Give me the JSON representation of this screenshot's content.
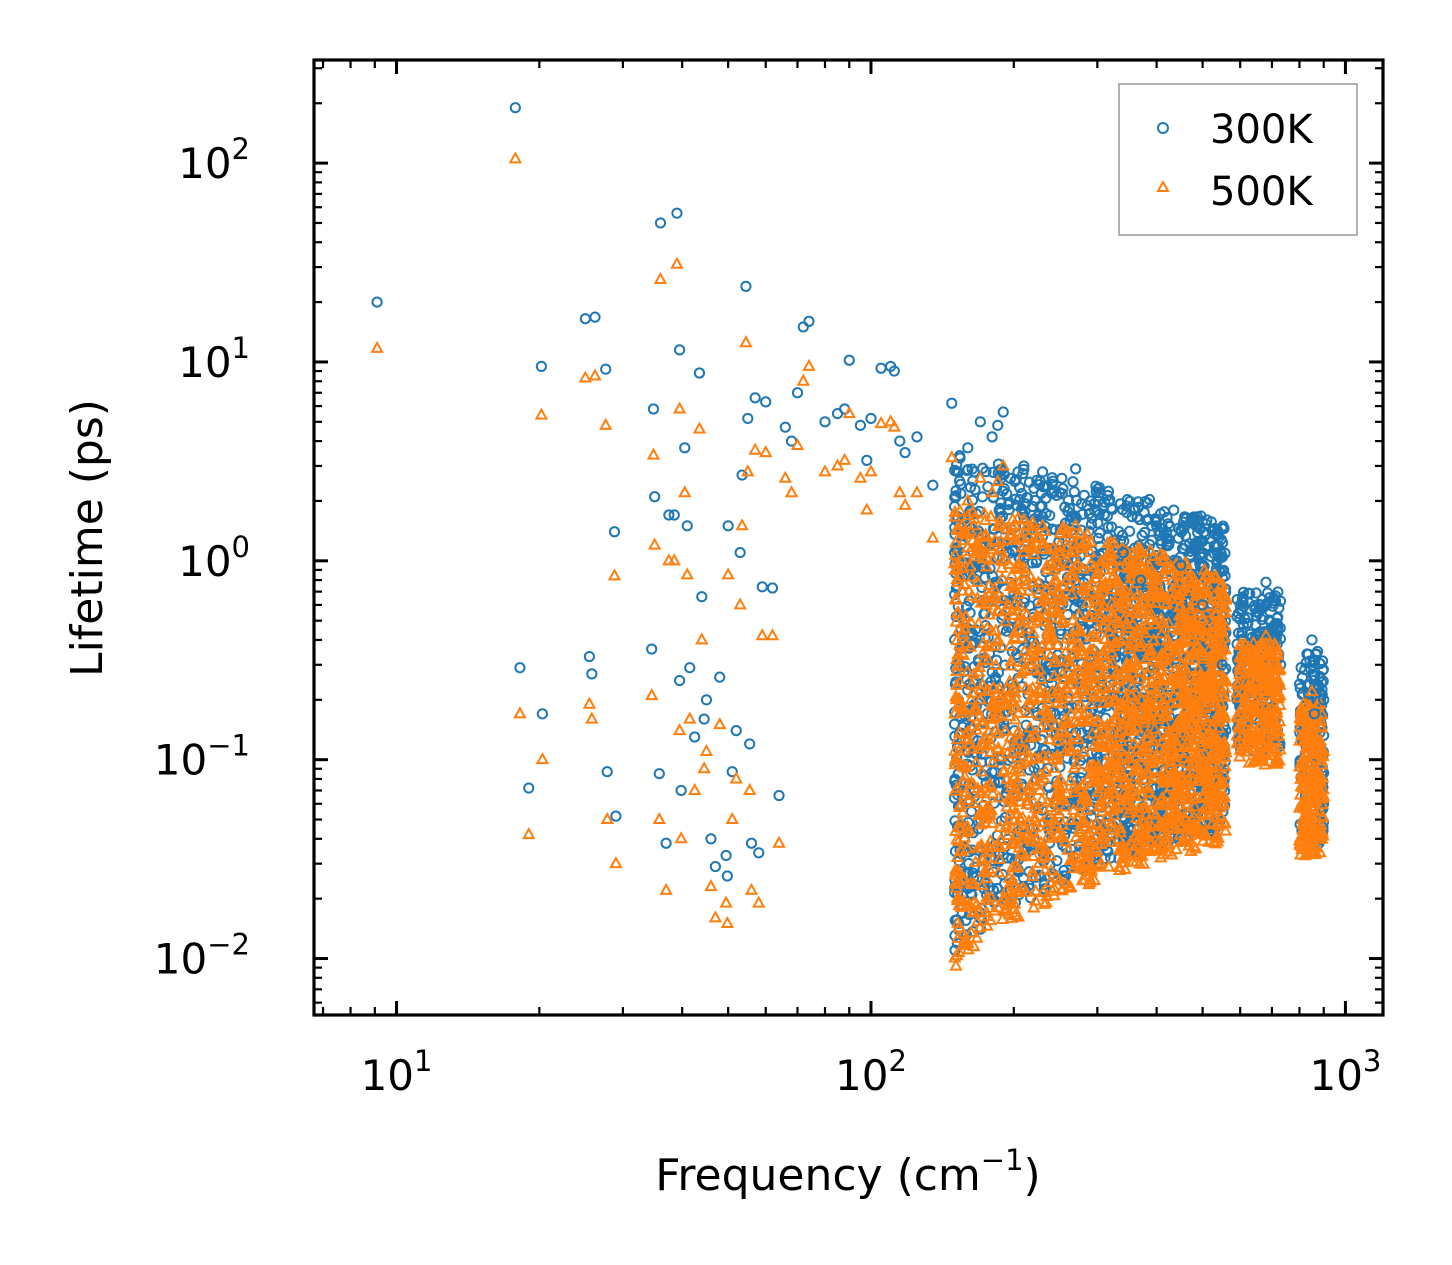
{
  "chart_data": {
    "type": "scatter",
    "xscale": "log",
    "yscale": "log",
    "xlim": [
      6.7,
      1200
    ],
    "ylim": [
      0.0052,
      330
    ],
    "xlabel": {
      "base": "Frequency (cm",
      "sup": "−1",
      "suffix": ")"
    },
    "ylabel": "Lifetime (ps)",
    "x_ticks": [
      {
        "value": 10,
        "base": "10",
        "exp": "1"
      },
      {
        "value": 100,
        "base": "10",
        "exp": "2"
      },
      {
        "value": 1000,
        "base": "10",
        "exp": "3"
      }
    ],
    "y_ticks": [
      {
        "value": 0.01,
        "base": "10",
        "exp": "−2"
      },
      {
        "value": 0.1,
        "base": "10",
        "exp": "−1"
      },
      {
        "value": 1,
        "base": "10",
        "exp": "0"
      },
      {
        "value": 10,
        "base": "10",
        "exp": "1"
      },
      {
        "value": 100,
        "base": "10",
        "exp": "2"
      }
    ],
    "legend_position": "top-right",
    "series": [
      {
        "name": "300K",
        "marker": "circle",
        "color": "#1f77b4",
        "points": [
          [
            9.1,
            20
          ],
          [
            17.8,
            190
          ],
          [
            18.2,
            0.29
          ],
          [
            19,
            0.072
          ],
          [
            20.2,
            9.5
          ],
          [
            20.3,
            0.17
          ],
          [
            25,
            16.5
          ],
          [
            25.5,
            0.33
          ],
          [
            25.8,
            0.27
          ],
          [
            26.2,
            16.8
          ],
          [
            27.6,
            9.2
          ],
          [
            27.8,
            0.087
          ],
          [
            28.8,
            1.4
          ],
          [
            29,
            0.052
          ],
          [
            34.5,
            0.36
          ],
          [
            34.8,
            5.8
          ],
          [
            35,
            2.1
          ],
          [
            35.8,
            0.085
          ],
          [
            36,
            50
          ],
          [
            37,
            0.038
          ],
          [
            37.5,
            1.7
          ],
          [
            38.5,
            1.7
          ],
          [
            39,
            56
          ],
          [
            39.5,
            11.5
          ],
          [
            39.5,
            0.25
          ],
          [
            39.8,
            0.07
          ],
          [
            40.5,
            3.7
          ],
          [
            41,
            1.5
          ],
          [
            41.5,
            0.29
          ],
          [
            42.5,
            0.13
          ],
          [
            43.5,
            8.8
          ],
          [
            44,
            0.66
          ],
          [
            44.5,
            0.16
          ],
          [
            45,
            0.2
          ],
          [
            46,
            0.04
          ],
          [
            47,
            0.029
          ],
          [
            48,
            0.26
          ],
          [
            49.5,
            0.033
          ],
          [
            49.8,
            0.026
          ],
          [
            50,
            1.5
          ],
          [
            51,
            0.087
          ],
          [
            52,
            0.14
          ],
          [
            53,
            1.1
          ],
          [
            53.5,
            2.7
          ],
          [
            54.5,
            24
          ],
          [
            55,
            5.2
          ],
          [
            55.5,
            0.12
          ],
          [
            56,
            0.038
          ],
          [
            57,
            6.6
          ],
          [
            58,
            0.034
          ],
          [
            59,
            0.74
          ],
          [
            60,
            6.3
          ],
          [
            62,
            0.73
          ],
          [
            64,
            0.066
          ],
          [
            66,
            4.7
          ],
          [
            68,
            4
          ],
          [
            70,
            7
          ],
          [
            72,
            15
          ],
          [
            74,
            16
          ],
          [
            80,
            5
          ],
          [
            85,
            5.5
          ],
          [
            88,
            5.8
          ],
          [
            90,
            10.2
          ],
          [
            95,
            4.8
          ],
          [
            98,
            3.2
          ],
          [
            100,
            5.2
          ],
          [
            105,
            9.3
          ],
          [
            110,
            9.5
          ],
          [
            112,
            9
          ],
          [
            115,
            4
          ],
          [
            118,
            3.5
          ],
          [
            125,
            4.2
          ],
          [
            135,
            2.4
          ],
          [
            148,
            6.2
          ],
          [
            160,
            3.7
          ],
          [
            165,
            2.8
          ],
          [
            170,
            5
          ],
          [
            180,
            4.2
          ],
          [
            185,
            4.8
          ],
          [
            190,
            5.6
          ],
          [
            210,
            3
          ],
          [
            230,
            2.8
          ],
          [
            250,
            2.2
          ],
          [
            270,
            2.9
          ],
          [
            290,
            2
          ],
          [
            310,
            1.7
          ],
          [
            340,
            1.1
          ],
          [
            370,
            0.8
          ],
          [
            400,
            1.5
          ],
          [
            420,
            1.2
          ],
          [
            450,
            0.95
          ],
          [
            500,
            0.6
          ],
          [
            550,
            0.3
          ],
          [
            600,
            0.6
          ],
          [
            650,
            0.55
          ],
          [
            680,
            0.78
          ],
          [
            720,
            0.45
          ],
          [
            850,
            0.4
          ],
          [
            860,
            0.17
          ],
          [
            880,
            0.23
          ],
          [
            900,
            0.2
          ]
        ]
      },
      {
        "name": "500K",
        "marker": "triangle",
        "color": "#ff7f0e",
        "points": [
          [
            9.1,
            11.7
          ],
          [
            17.8,
            105
          ],
          [
            18.2,
            0.17
          ],
          [
            19,
            0.042
          ],
          [
            20.2,
            5.4
          ],
          [
            20.3,
            0.1
          ],
          [
            25,
            8.3
          ],
          [
            25.5,
            0.19
          ],
          [
            25.8,
            0.16
          ],
          [
            26.2,
            8.5
          ],
          [
            27.6,
            4.8
          ],
          [
            27.8,
            0.05
          ],
          [
            28.8,
            0.84
          ],
          [
            29,
            0.03
          ],
          [
            34.5,
            0.21
          ],
          [
            34.8,
            3.4
          ],
          [
            35,
            1.2
          ],
          [
            35.8,
            0.05
          ],
          [
            36,
            26
          ],
          [
            37,
            0.022
          ],
          [
            37.5,
            1
          ],
          [
            38.5,
            1
          ],
          [
            39,
            31
          ],
          [
            39.5,
            5.8
          ],
          [
            39.5,
            0.14
          ],
          [
            39.8,
            0.04
          ],
          [
            40.5,
            2.2
          ],
          [
            41,
            0.85
          ],
          [
            41.5,
            0.16
          ],
          [
            42.5,
            0.07
          ],
          [
            43.5,
            4.6
          ],
          [
            44,
            0.4
          ],
          [
            44.5,
            0.09
          ],
          [
            45,
            0.11
          ],
          [
            46,
            0.023
          ],
          [
            47,
            0.016
          ],
          [
            48,
            0.15
          ],
          [
            49.5,
            0.019
          ],
          [
            49.8,
            0.015
          ],
          [
            50,
            0.85
          ],
          [
            51,
            0.05
          ],
          [
            52,
            0.08
          ],
          [
            53,
            0.6
          ],
          [
            53.5,
            1.5
          ],
          [
            54.5,
            12.5
          ],
          [
            55,
            2.8
          ],
          [
            55.5,
            0.07
          ],
          [
            56,
            0.022
          ],
          [
            57,
            3.6
          ],
          [
            58,
            0.019
          ],
          [
            59,
            0.42
          ],
          [
            60,
            3.5
          ],
          [
            62,
            0.42
          ],
          [
            64,
            0.038
          ],
          [
            66,
            2.6
          ],
          [
            68,
            2.2
          ],
          [
            70,
            3.8
          ],
          [
            72,
            8
          ],
          [
            74,
            9.5
          ],
          [
            80,
            2.8
          ],
          [
            85,
            3
          ],
          [
            88,
            3.2
          ],
          [
            90,
            5.5
          ],
          [
            95,
            2.6
          ],
          [
            98,
            1.8
          ],
          [
            100,
            2.8
          ],
          [
            105,
            4.9
          ],
          [
            110,
            5
          ],
          [
            112,
            4.7
          ],
          [
            115,
            2.2
          ],
          [
            118,
            1.9
          ],
          [
            125,
            2.2
          ],
          [
            135,
            1.3
          ],
          [
            148,
            3.3
          ],
          [
            160,
            2
          ],
          [
            165,
            1.5
          ],
          [
            170,
            2.6
          ],
          [
            180,
            2.2
          ],
          [
            185,
            2.5
          ],
          [
            190,
            3
          ],
          [
            210,
            1.6
          ],
          [
            230,
            1.5
          ],
          [
            250,
            1.2
          ],
          [
            270,
            1.5
          ],
          [
            290,
            1.1
          ],
          [
            310,
            0.9
          ],
          [
            340,
            0.6
          ],
          [
            370,
            0.45
          ],
          [
            400,
            0.8
          ],
          [
            420,
            0.65
          ],
          [
            450,
            0.5
          ],
          [
            500,
            0.32
          ],
          [
            550,
            0.17
          ],
          [
            600,
            0.33
          ],
          [
            650,
            0.3
          ],
          [
            680,
            0.42
          ],
          [
            720,
            0.25
          ],
          [
            850,
            0.22
          ],
          [
            860,
            0.09
          ],
          [
            880,
            0.12
          ],
          [
            900,
            0.11
          ]
        ]
      }
    ]
  }
}
